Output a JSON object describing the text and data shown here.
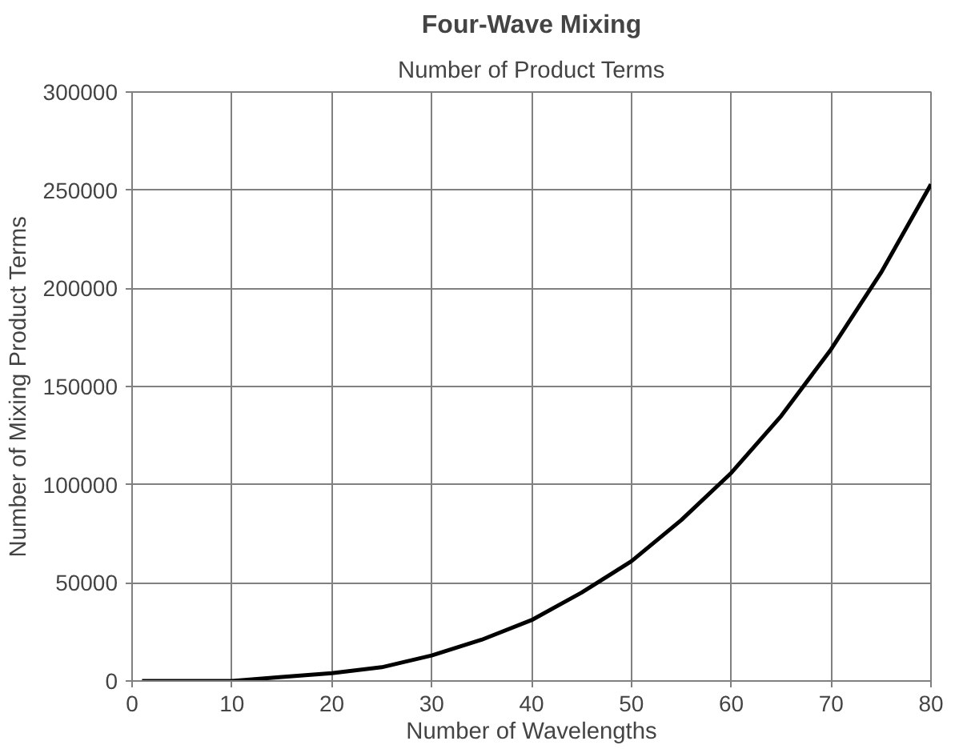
{
  "chart_data": {
    "type": "line",
    "title": "Four-Wave Mixing",
    "subtitle": "Number of Product Terms",
    "xlabel": "Number of Wavelengths",
    "ylabel": "Number of Mixing Product Terms",
    "x": [
      1,
      5,
      10,
      15,
      20,
      25,
      30,
      35,
      40,
      45,
      50,
      55,
      60,
      65,
      70,
      75,
      80
    ],
    "series": [
      {
        "color": "#000000",
        "values": [
          0,
          0,
          0,
          2000,
          4000,
          7000,
          13000,
          21000,
          31000,
          45000,
          61000,
          82000,
          106000,
          135000,
          169000,
          208000,
          253000
        ]
      }
    ],
    "xlim": [
      0,
      80
    ],
    "xticks": [
      0,
      10,
      20,
      30,
      40,
      50,
      60,
      70,
      80
    ],
    "ylim": [
      0,
      300000
    ],
    "yticks": [
      0,
      50000,
      100000,
      150000,
      200000,
      250000,
      300000
    ],
    "grid": true,
    "marker": "none",
    "line_style": "solid"
  }
}
